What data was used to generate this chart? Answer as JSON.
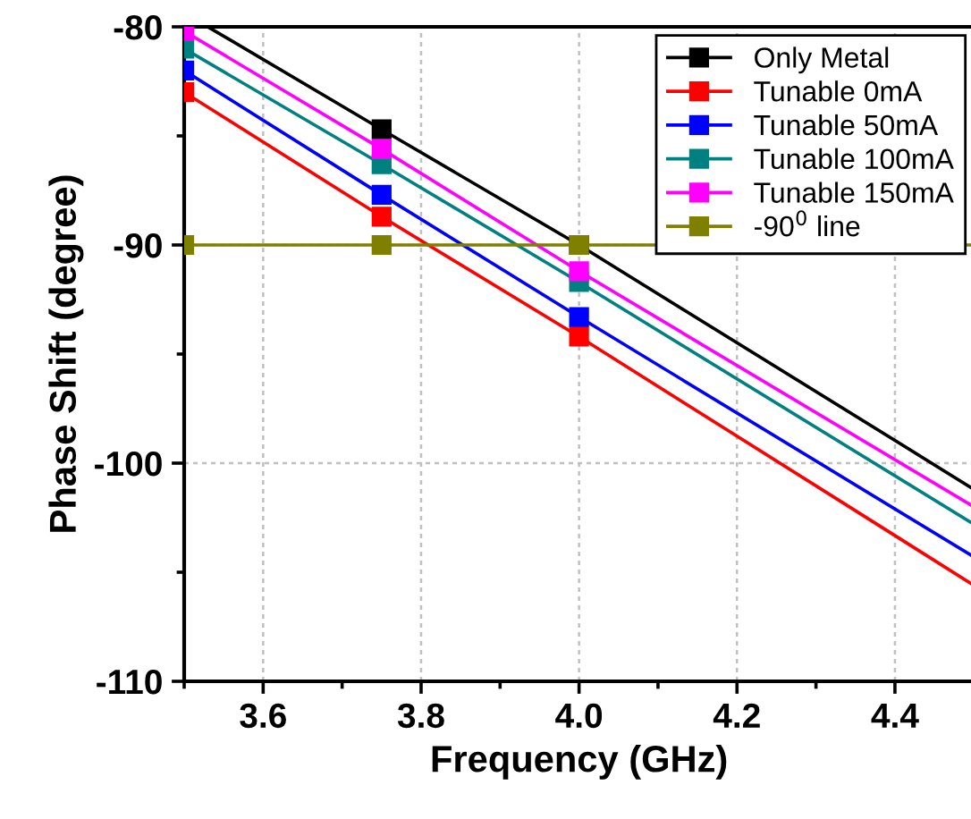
{
  "chart_data": {
    "type": "line",
    "xlabel": "Frequency (GHz)",
    "ylabel": "Phase Shift (degree)",
    "xlim": [
      3.5,
      4.5
    ],
    "ylim": [
      -110,
      -80
    ],
    "xticks": [
      {
        "value": 3.5,
        "label": null
      },
      3.6,
      {
        "value": 3.7,
        "label": null
      },
      3.8,
      {
        "value": 3.9,
        "label": null
      },
      {
        "value": 4.0,
        "label": "4.0"
      },
      {
        "value": 4.1,
        "label": null
      },
      4.2,
      {
        "value": 4.3,
        "label": null
      },
      4.4,
      {
        "value": 4.5,
        "label": null
      }
    ],
    "yticks": [
      -110,
      {
        "value": -105,
        "label": null
      },
      -100,
      {
        "value": -95,
        "label": null
      },
      -90,
      {
        "value": -85,
        "label": null
      },
      -80
    ],
    "grid": true,
    "legend": "top right",
    "marker": "square",
    "line_style": "solid",
    "series": [
      {
        "name": "Only Metal",
        "color": "#000000",
        "x": [
          3.53,
          3.75,
          4.0,
          4.5
        ],
        "values": [
          -80.0,
          -84.7,
          -90.0,
          -101.2
        ]
      },
      {
        "name": "Tunable 0mA",
        "color": "#ff0000",
        "x": [
          3.5,
          3.75,
          4.0,
          4.5
        ],
        "values": [
          -83.0,
          -88.7,
          -94.2,
          -105.6
        ]
      },
      {
        "name": "Tunable 50mA",
        "color": "#0000ff",
        "x": [
          3.5,
          3.75,
          4.0,
          4.5
        ],
        "values": [
          -82.0,
          -87.7,
          -93.3,
          -104.3
        ]
      },
      {
        "name": "Tunable 100mA",
        "color": "#008080",
        "x": [
          3.5,
          3.75,
          4.0,
          4.5
        ],
        "values": [
          -81.0,
          -86.3,
          -91.7,
          -102.8
        ]
      },
      {
        "name": "Tunable 150mA",
        "color": "#ff00ff",
        "x": [
          3.5,
          3.75,
          4.0,
          4.5
        ],
        "values": [
          -80.2,
          -85.6,
          -91.2,
          -102.0
        ]
      },
      {
        "name": "-90$^{0}$ line",
        "color": "#808000",
        "x": [
          3.5,
          3.75,
          4.0,
          4.5
        ],
        "values": [
          -90,
          -90,
          -90,
          -90
        ]
      }
    ]
  }
}
